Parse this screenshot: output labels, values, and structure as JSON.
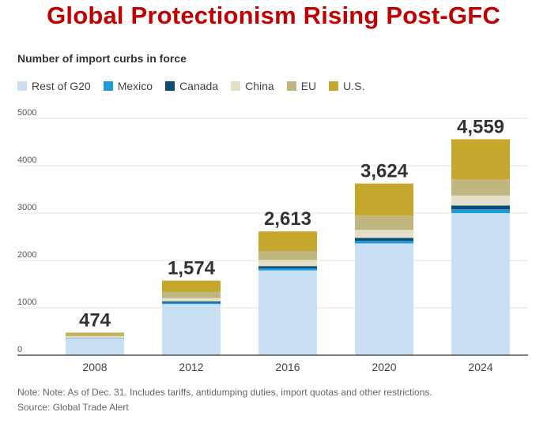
{
  "chart_data": {
    "type": "bar",
    "stacked": true,
    "title": "Global Protectionism Rising Post-GFC",
    "subtitle": "Number of import curbs in force",
    "categories": [
      "2008",
      "2012",
      "2016",
      "2020",
      "2024"
    ],
    "series": [
      {
        "name": "Rest of G20",
        "color": "#c9e0f4",
        "values": [
          355,
          1080,
          1790,
          2360,
          3000
        ]
      },
      {
        "name": "Mexico",
        "color": "#1b9bd7",
        "values": [
          5,
          30,
          45,
          55,
          80
        ]
      },
      {
        "name": "Canada",
        "color": "#0e4a73",
        "values": [
          4,
          25,
          45,
          60,
          80
        ]
      },
      {
        "name": "China",
        "color": "#e4e0c8",
        "values": [
          35,
          70,
          130,
          170,
          210
        ]
      },
      {
        "name": "EU",
        "color": "#bfb77f",
        "values": [
          40,
          130,
          190,
          300,
          340
        ]
      },
      {
        "name": "U.S.",
        "color": "#c6a72d",
        "values": [
          35,
          239,
          413,
          679,
          849
        ]
      }
    ],
    "totals": [
      "474",
      "1,574",
      "2,613",
      "3,624",
      "4,559"
    ],
    "ylim": [
      0,
      5000
    ],
    "yticks": [
      "0",
      "1000",
      "2000",
      "3000",
      "4000",
      "5000"
    ],
    "xlabel": "",
    "ylabel": "",
    "grid": true,
    "legend_position": "top-left",
    "note": "Note: Note: As of Dec. 31. Includes tariffs, antidumping duties, import quotas and other restrictions.",
    "source": "Source: Global Trade Alert"
  }
}
